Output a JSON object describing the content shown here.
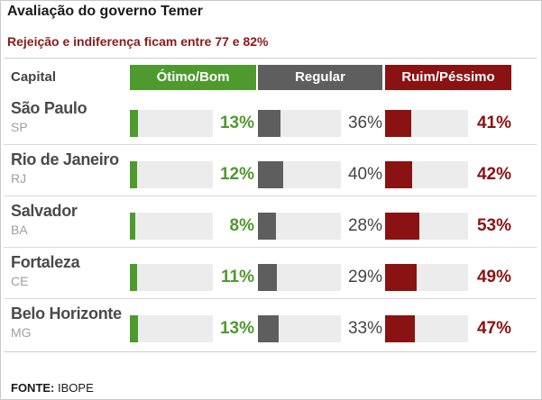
{
  "title": "Avaliação do governo Temer",
  "subtitle": "Rejeição e indiferença ficam entre 77 e 82%",
  "colors": {
    "otimo": "#4e9a2e",
    "regular": "#5e5e5e",
    "ruim": "#8b1212",
    "track": "#ececec"
  },
  "headers": {
    "capital": "Capital",
    "otimo": "Ótimo/Bom",
    "regular": "Regular",
    "ruim": "Ruim/Péssimo"
  },
  "chart_data": {
    "type": "bar",
    "categories": [
      "São Paulo",
      "Rio de Janeiro",
      "Salvador",
      "Fortaleza",
      "Belo Horizonte"
    ],
    "series": [
      {
        "name": "Ótimo/Bom",
        "values": [
          13,
          12,
          8,
          11,
          13
        ]
      },
      {
        "name": "Regular",
        "values": [
          36,
          40,
          28,
          29,
          33
        ]
      },
      {
        "name": "Ruim/Péssimo",
        "values": [
          41,
          42,
          53,
          49,
          47
        ]
      }
    ],
    "ylim": [
      0,
      100
    ]
  },
  "rows": [
    {
      "city": "São Paulo",
      "uf": "SP",
      "otimo": "13%",
      "regular": "36%",
      "ruim": "41%"
    },
    {
      "city": "Rio de Janeiro",
      "uf": "RJ",
      "otimo": "12%",
      "regular": "40%",
      "ruim": "42%"
    },
    {
      "city": "Salvador",
      "uf": "BA",
      "otimo": "8%",
      "regular": "28%",
      "ruim": "53%"
    },
    {
      "city": "Fortaleza",
      "uf": "CE",
      "otimo": "11%",
      "regular": "29%",
      "ruim": "49%"
    },
    {
      "city": "Belo Horizonte",
      "uf": "MG",
      "otimo": "13%",
      "regular": "33%",
      "ruim": "47%"
    }
  ],
  "footer": {
    "label": "FONTE:",
    "source": "IBOPE"
  }
}
